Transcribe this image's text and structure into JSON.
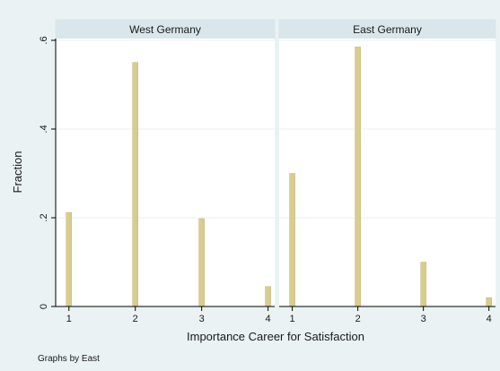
{
  "chart_data": {
    "type": "bar",
    "ylabel": "Fraction",
    "xlabel": "Importance Career for Satisfaction",
    "note": "Graphs by East",
    "ylim": [
      0,
      0.6
    ],
    "yticks": [
      0,
      0.2,
      0.4,
      0.6
    ],
    "ytick_labels": [
      "0",
      ".2",
      ".4",
      ".6"
    ],
    "xlim": [
      0.8,
      4.1
    ],
    "xticks": [
      1,
      2,
      3,
      4
    ],
    "xtick_labels": [
      "1",
      "2",
      "3",
      "4"
    ],
    "grid": true,
    "bar_color": "#d8cd8e",
    "bar_edge_color": "#bfb275",
    "panels": [
      {
        "title": "West Germany",
        "x": [
          1,
          2,
          3,
          4
        ],
        "values": [
          0.212,
          0.55,
          0.198,
          0.045
        ]
      },
      {
        "title": "East Germany",
        "x": [
          1,
          2,
          3,
          4
        ],
        "values": [
          0.3,
          0.585,
          0.1,
          0.02
        ]
      }
    ]
  }
}
